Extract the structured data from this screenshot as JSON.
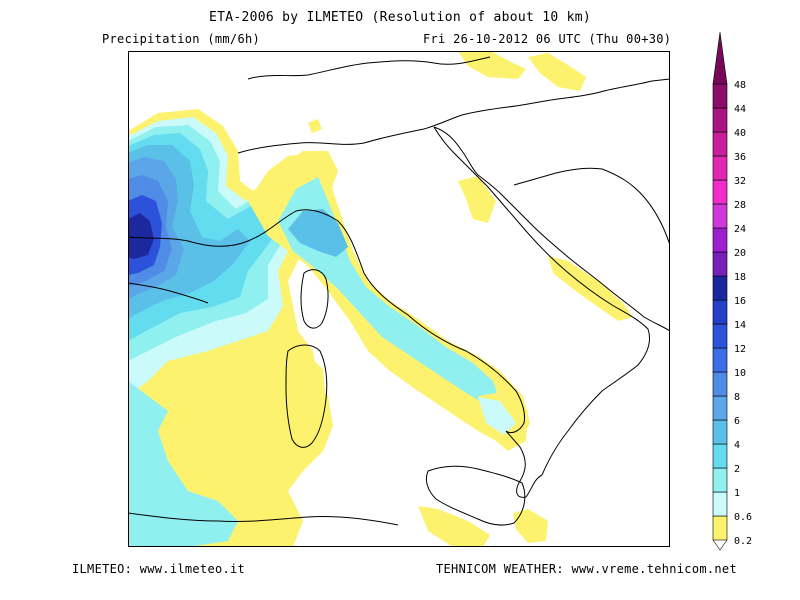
{
  "header": {
    "title": "ETA-2006 by ILMETEO (Resolution of about 10 km)",
    "field": "Precipitation (mm/6h)",
    "valid_time": "Fri 26-10-2012 06 UTC (Thu 00+30)"
  },
  "footer": {
    "left": "ILMETEO: www.ilmeteo.it",
    "right": "TEHNICOM WEATHER: www.vreme.tehnicom.net"
  },
  "legend": {
    "labels": [
      "0.2",
      "0.6",
      "1",
      "2",
      "4",
      "6",
      "8",
      "10",
      "12",
      "14",
      "16",
      "18",
      "20",
      "24",
      "28",
      "32",
      "36",
      "40",
      "44",
      "48"
    ],
    "colors": [
      "#fdf26d",
      "#cbfafa",
      "#90f0f0",
      "#62dcee",
      "#5ac0e8",
      "#5aa6e6",
      "#508ce6",
      "#3c6ee6",
      "#2c52dc",
      "#2440c6",
      "#1e289e",
      "#7a20ba",
      "#9c20d0",
      "#d038dc",
      "#f02ccc",
      "#e028b2",
      "#c81e9a",
      "#aa1483",
      "#8c0c6a",
      "#760a58"
    ]
  },
  "colors": {
    "coastline": "#000000",
    "frame": "#000000"
  }
}
